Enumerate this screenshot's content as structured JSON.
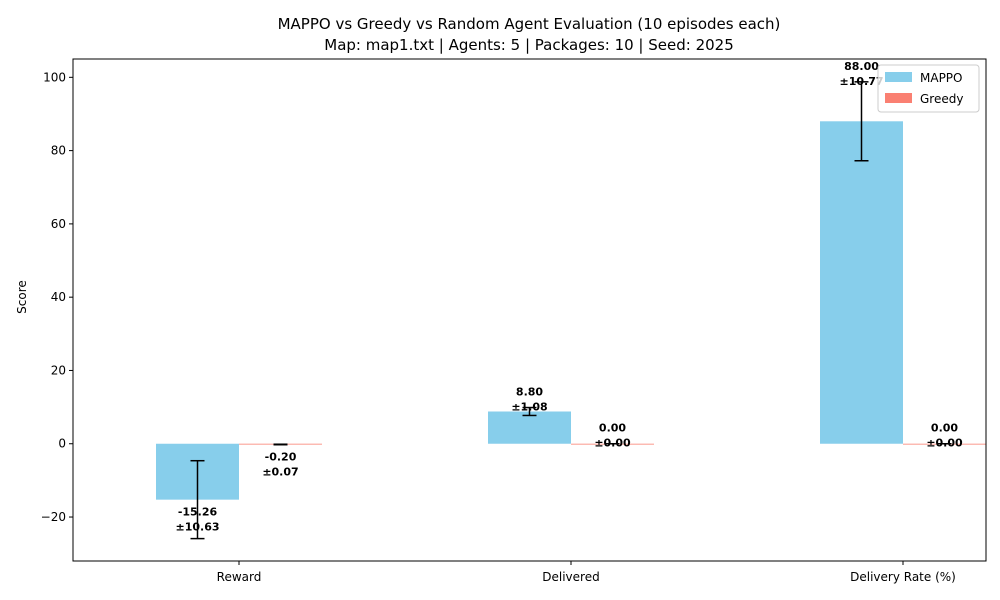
{
  "chart_data": {
    "type": "bar",
    "title": "MAPPO vs Greedy vs Random Agent Evaluation (10 episodes each)",
    "subtitle": "Map: map1.txt | Agents: 5 | Packages: 10 | Seed: 2025",
    "xlabel": "",
    "ylabel": "Score",
    "categories": [
      "Reward",
      "Delivered",
      "Delivery Rate (%)"
    ],
    "ylim": [
      -32,
      105
    ],
    "yticks": [
      -20,
      0,
      20,
      40,
      60,
      80,
      100
    ],
    "ytick_labels": [
      "−20",
      "0",
      "20",
      "40",
      "60",
      "80",
      "100"
    ],
    "grid": false,
    "legend_position": "top-right",
    "series": [
      {
        "name": "MAPPO",
        "color": "#87ceeb",
        "values": [
          -15.26,
          8.8,
          88.0
        ],
        "errors": [
          10.63,
          1.08,
          10.77
        ],
        "labels": [
          [
            "-15.26",
            "±10.63"
          ],
          [
            "8.80",
            "±1.08"
          ],
          [
            "88.00",
            "±10.77"
          ]
        ]
      },
      {
        "name": "Greedy",
        "color": "#fa8072",
        "values": [
          -0.2,
          0.0,
          0.0
        ],
        "errors": [
          0.07,
          0.0,
          0.0
        ],
        "labels": [
          [
            "-0.20",
            "±0.07"
          ],
          [
            "0.00",
            "±0.00"
          ],
          [
            "0.00",
            "±0.00"
          ]
        ]
      }
    ]
  }
}
